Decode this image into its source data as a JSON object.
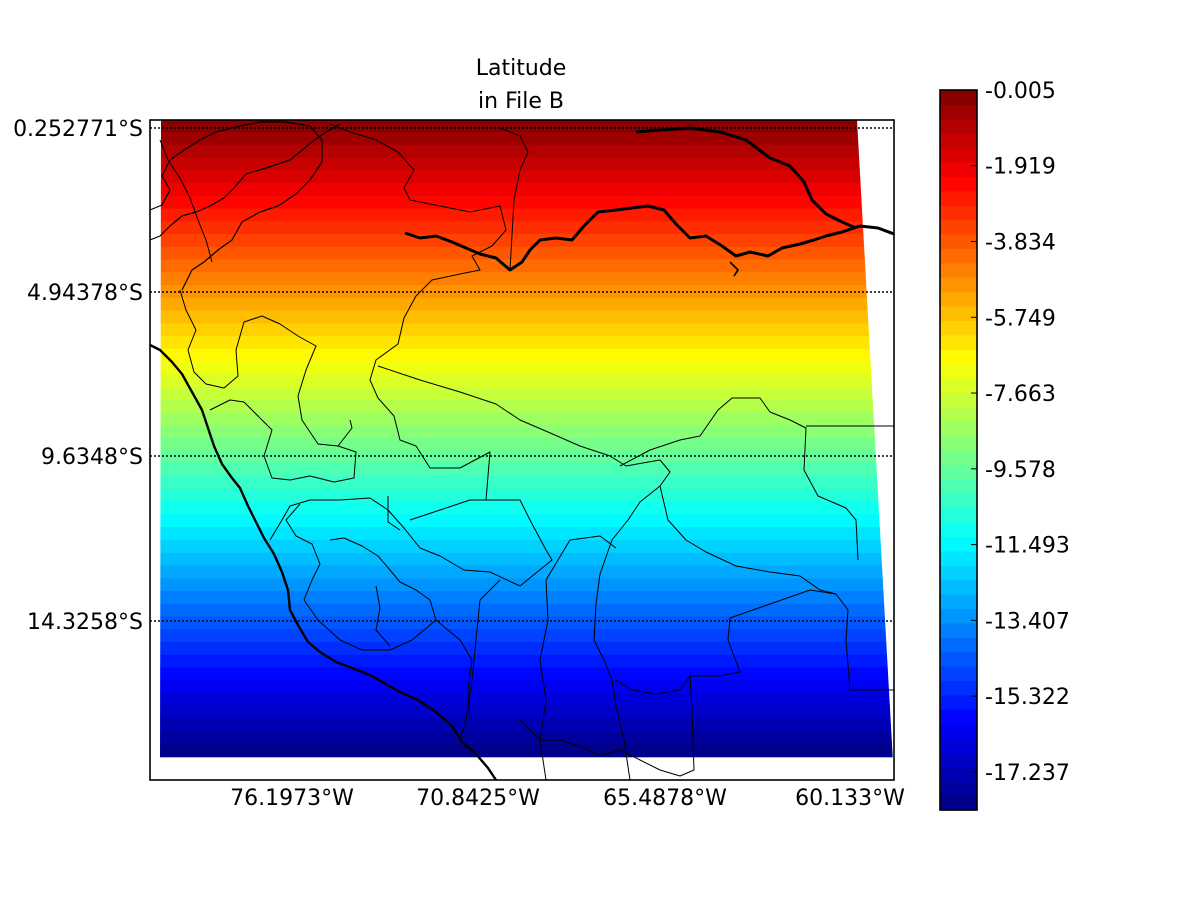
{
  "title": {
    "line1": "Latitude",
    "line2": "in File B"
  },
  "map": {
    "lat_labels": [
      "0.252771°S",
      "4.94378°S",
      "9.6348°S",
      "14.3258°S"
    ],
    "lon_labels": [
      "76.1973°W",
      "70.8425°W",
      "65.4878°W",
      "60.133°W"
    ],
    "lat_values": [
      -0.252771,
      -4.94378,
      -9.6348,
      -14.3258
    ],
    "lon_values": [
      -76.1973,
      -70.8425,
      -65.4878,
      -60.133
    ],
    "field": "latitude",
    "field_min": -18.2,
    "field_max": -0.005,
    "colormap": "jet"
  },
  "colorbar": {
    "tick_labels": [
      "-0.005",
      "-1.919",
      "-3.834",
      "-5.749",
      "-7.663",
      "-9.578",
      "-11.493",
      "-13.407",
      "-15.322",
      "-17.237"
    ],
    "tick_values": [
      -0.005,
      -1.919,
      -3.834,
      -5.749,
      -7.663,
      -9.578,
      -11.493,
      -13.407,
      -15.322,
      -17.237
    ],
    "min": -18.2,
    "max": -0.005,
    "levels": 50
  }
}
